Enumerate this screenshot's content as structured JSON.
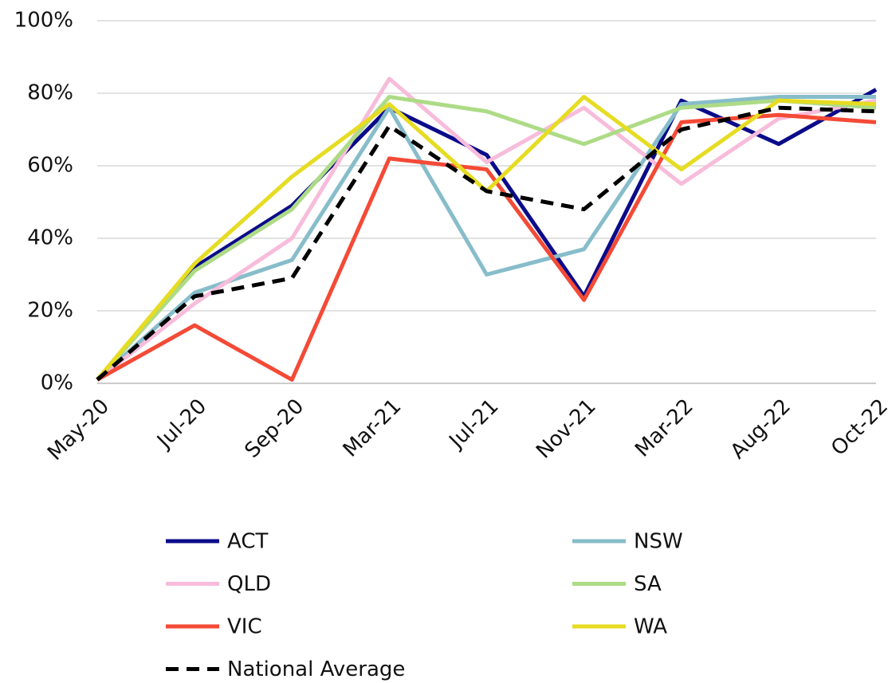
{
  "chart_data": {
    "type": "line",
    "categories": [
      "May-20",
      "Jul-20",
      "Sep-20",
      "Mar-21",
      "Jul-21",
      "Nov-21",
      "Mar-22",
      "Aug-22",
      "Oct-22"
    ],
    "series": [
      {
        "name": "ACT",
        "color": "#0b0b8a",
        "values": [
          1,
          32,
          49,
          76,
          63,
          24,
          78,
          66,
          81
        ]
      },
      {
        "name": "NSW",
        "color": "#87bdca",
        "values": [
          1,
          25,
          34,
          76,
          30,
          37,
          77,
          79,
          79
        ]
      },
      {
        "name": "QLD",
        "color": "#f8bcdb",
        "values": [
          1,
          22,
          40,
          84,
          61,
          76,
          55,
          73,
          78
        ]
      },
      {
        "name": "SA",
        "color": "#addb86",
        "values": [
          1,
          31,
          48,
          79,
          75,
          66,
          76,
          78,
          76
        ]
      },
      {
        "name": "VIC",
        "color": "#f44a36",
        "values": [
          1,
          16,
          1,
          62,
          59,
          23,
          72,
          74,
          72
        ]
      },
      {
        "name": "WA",
        "color": "#e6dc22",
        "values": [
          1,
          33,
          57,
          77,
          53,
          79,
          59,
          78,
          77
        ]
      },
      {
        "name": "National Average",
        "color": "#000000",
        "dashed": true,
        "values": [
          1,
          24,
          29,
          71,
          53,
          48,
          70,
          76,
          75
        ]
      }
    ],
    "ylim": [
      0,
      100
    ],
    "yticks": [
      {
        "value": 0,
        "label": "0%"
      },
      {
        "value": 20,
        "label": "20%"
      },
      {
        "value": 40,
        "label": "40%"
      },
      {
        "value": 60,
        "label": "60%"
      },
      {
        "value": 80,
        "label": "80%"
      },
      {
        "value": 100,
        "label": "100%"
      }
    ],
    "grid": true,
    "legend": "bottom"
  }
}
